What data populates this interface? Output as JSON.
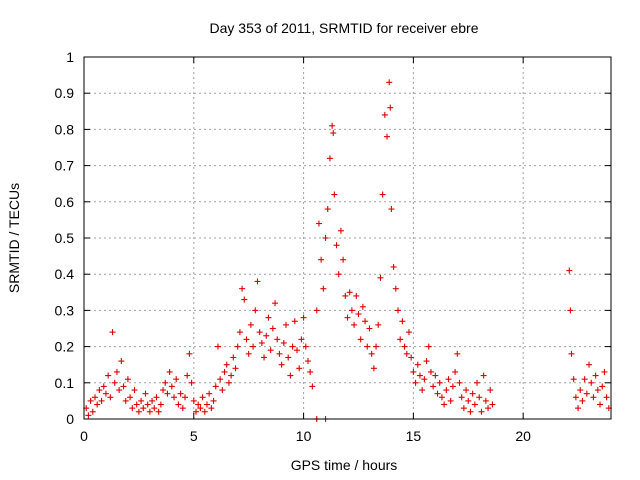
{
  "chart_data": {
    "type": "scatter",
    "title": "Day 353 of 2011, SRMTID for receiver ebre",
    "xlabel": "GPS time / hours",
    "ylabel": "SRMTID / TECUs",
    "xlim": [
      0,
      24
    ],
    "ylim": [
      0,
      1
    ],
    "xticks": [
      0,
      5,
      10,
      15,
      20
    ],
    "xtick_labels": [
      "0",
      "5",
      "10",
      "15",
      "20"
    ],
    "yticks": [
      0,
      0.1,
      0.2,
      0.3,
      0.4,
      0.5,
      0.6,
      0.7,
      0.8,
      0.9,
      1
    ],
    "ytick_labels": [
      "0",
      "0.1",
      "0.2",
      "0.3",
      "0.4",
      "0.5",
      "0.6",
      "0.7",
      "0.8",
      "0.9",
      "1"
    ],
    "grid": true,
    "marker": "+",
    "color": "#e00000",
    "series": [
      {
        "name": "SRMTID",
        "points": [
          [
            0.1,
            0.03
          ],
          [
            0.2,
            0.01
          ],
          [
            0.3,
            0.05
          ],
          [
            0.4,
            0.02
          ],
          [
            0.5,
            0.06
          ],
          [
            0.6,
            0.04
          ],
          [
            0.7,
            0.08
          ],
          [
            0.8,
            0.05
          ],
          [
            0.9,
            0.09
          ],
          [
            1.0,
            0.07
          ],
          [
            1.1,
            0.12
          ],
          [
            1.2,
            0.06
          ],
          [
            1.3,
            0.24
          ],
          [
            1.4,
            0.1
          ],
          [
            1.5,
            0.13
          ],
          [
            1.6,
            0.08
          ],
          [
            1.7,
            0.16
          ],
          [
            1.8,
            0.09
          ],
          [
            1.9,
            0.05
          ],
          [
            2.0,
            0.11
          ],
          [
            2.1,
            0.06
          ],
          [
            2.2,
            0.03
          ],
          [
            2.3,
            0.08
          ],
          [
            2.4,
            0.04
          ],
          [
            2.5,
            0.02
          ],
          [
            2.6,
            0.05
          ],
          [
            2.7,
            0.03
          ],
          [
            2.8,
            0.07
          ],
          [
            2.9,
            0.04
          ],
          [
            3.0,
            0.02
          ],
          [
            3.1,
            0.05
          ],
          [
            3.2,
            0.03
          ],
          [
            3.3,
            0.06
          ],
          [
            3.4,
            0.02
          ],
          [
            3.5,
            0.04
          ],
          [
            3.6,
            0.08
          ],
          [
            3.7,
            0.1
          ],
          [
            3.8,
            0.07
          ],
          [
            3.9,
            0.13
          ],
          [
            4.0,
            0.09
          ],
          [
            4.1,
            0.06
          ],
          [
            4.2,
            0.11
          ],
          [
            4.3,
            0.04
          ],
          [
            4.4,
            0.07
          ],
          [
            4.5,
            0.03
          ],
          [
            4.6,
            0.06
          ],
          [
            4.7,
            0.12
          ],
          [
            4.8,
            0.18
          ],
          [
            4.9,
            0.1
          ],
          [
            5.0,
            0.05
          ],
          [
            5.1,
            0.02
          ],
          [
            5.2,
            0.04
          ],
          [
            5.3,
            0.03
          ],
          [
            5.4,
            0.06
          ],
          [
            5.5,
            0.02
          ],
          [
            5.6,
            0.04
          ],
          [
            5.7,
            0.07
          ],
          [
            5.8,
            0.03
          ],
          [
            5.9,
            0.05
          ],
          [
            6.0,
            0.09
          ],
          [
            6.1,
            0.2
          ],
          [
            6.2,
            0.11
          ],
          [
            6.3,
            0.08
          ],
          [
            6.4,
            0.13
          ],
          [
            6.5,
            0.15
          ],
          [
            6.6,
            0.1
          ],
          [
            6.7,
            0.12
          ],
          [
            6.8,
            0.17
          ],
          [
            6.9,
            0.14
          ],
          [
            7.0,
            0.2
          ],
          [
            7.1,
            0.24
          ],
          [
            7.2,
            0.36
          ],
          [
            7.3,
            0.33
          ],
          [
            7.4,
            0.22
          ],
          [
            7.5,
            0.18
          ],
          [
            7.6,
            0.26
          ],
          [
            7.7,
            0.2
          ],
          [
            7.8,
            0.3
          ],
          [
            7.9,
            0.38
          ],
          [
            8.0,
            0.24
          ],
          [
            8.1,
            0.21
          ],
          [
            8.2,
            0.17
          ],
          [
            8.3,
            0.23
          ],
          [
            8.4,
            0.28
          ],
          [
            8.5,
            0.19
          ],
          [
            8.6,
            0.25
          ],
          [
            8.7,
            0.32
          ],
          [
            8.8,
            0.22
          ],
          [
            8.9,
            0.18
          ],
          [
            9.0,
            0.15
          ],
          [
            9.1,
            0.21
          ],
          [
            9.2,
            0.26
          ],
          [
            9.3,
            0.17
          ],
          [
            9.4,
            0.12
          ],
          [
            9.5,
            0.2
          ],
          [
            9.6,
            0.27
          ],
          [
            9.7,
            0.19
          ],
          [
            9.8,
            0.14
          ],
          [
            9.9,
            0.22
          ],
          [
            10.0,
            0.28
          ],
          [
            10.1,
            0.2
          ],
          [
            10.2,
            0.16
          ],
          [
            10.3,
            0.13
          ],
          [
            10.4,
            0.09
          ],
          [
            10.6,
            0.3
          ],
          [
            10.7,
            0.54
          ],
          [
            10.8,
            0.44
          ],
          [
            10.9,
            0.36
          ],
          [
            11.0,
            0.5
          ],
          [
            11.1,
            0.58
          ],
          [
            11.2,
            0.72
          ],
          [
            11.3,
            0.81
          ],
          [
            11.35,
            0.79
          ],
          [
            11.4,
            0.62
          ],
          [
            11.5,
            0.48
          ],
          [
            11.6,
            0.4
          ],
          [
            11.7,
            0.52
          ],
          [
            11.8,
            0.44
          ],
          [
            11.9,
            0.34
          ],
          [
            12.0,
            0.28
          ],
          [
            12.1,
            0.35
          ],
          [
            12.2,
            0.3
          ],
          [
            12.3,
            0.26
          ],
          [
            12.4,
            0.34
          ],
          [
            12.5,
            0.29
          ],
          [
            12.6,
            0.22
          ],
          [
            12.7,
            0.31
          ],
          [
            12.8,
            0.27
          ],
          [
            12.9,
            0.2
          ],
          [
            13.0,
            0.25
          ],
          [
            13.1,
            0.18
          ],
          [
            13.2,
            0.14
          ],
          [
            13.3,
            0.2
          ],
          [
            13.4,
            0.26
          ],
          [
            13.5,
            0.39
          ],
          [
            13.6,
            0.62
          ],
          [
            13.7,
            0.84
          ],
          [
            13.8,
            0.78
          ],
          [
            13.9,
            0.93
          ],
          [
            13.95,
            0.86
          ],
          [
            14.0,
            0.58
          ],
          [
            14.1,
            0.42
          ],
          [
            14.2,
            0.36
          ],
          [
            14.3,
            0.3
          ],
          [
            14.4,
            0.22
          ],
          [
            14.5,
            0.27
          ],
          [
            14.6,
            0.2
          ],
          [
            14.7,
            0.18
          ],
          [
            14.8,
            0.24
          ],
          [
            14.9,
            0.17
          ],
          [
            15.0,
            0.13
          ],
          [
            15.1,
            0.1
          ],
          [
            15.2,
            0.15
          ],
          [
            15.3,
            0.12
          ],
          [
            15.4,
            0.08
          ],
          [
            15.5,
            0.11
          ],
          [
            15.6,
            0.16
          ],
          [
            15.7,
            0.2
          ],
          [
            15.8,
            0.13
          ],
          [
            15.9,
            0.09
          ],
          [
            16.0,
            0.12
          ],
          [
            16.1,
            0.07
          ],
          [
            16.2,
            0.1
          ],
          [
            16.3,
            0.06
          ],
          [
            16.4,
            0.04
          ],
          [
            16.5,
            0.08
          ],
          [
            16.6,
            0.11
          ],
          [
            16.7,
            0.05
          ],
          [
            16.8,
            0.09
          ],
          [
            16.9,
            0.13
          ],
          [
            17.0,
            0.18
          ],
          [
            17.1,
            0.1
          ],
          [
            17.2,
            0.06
          ],
          [
            17.3,
            0.03
          ],
          [
            17.4,
            0.08
          ],
          [
            17.5,
            0.05
          ],
          [
            17.6,
            0.02
          ],
          [
            17.7,
            0.07
          ],
          [
            17.8,
            0.04
          ],
          [
            17.9,
            0.1
          ],
          [
            18.0,
            0.06
          ],
          [
            18.1,
            0.02
          ],
          [
            18.2,
            0.12
          ],
          [
            18.3,
            0.05
          ],
          [
            18.4,
            0.03
          ],
          [
            18.5,
            0.08
          ],
          [
            18.6,
            0.04
          ],
          [
            10.6,
            0.0
          ],
          [
            11.0,
            0.0
          ],
          [
            22.1,
            0.41
          ],
          [
            22.15,
            0.3
          ],
          [
            22.2,
            0.18
          ],
          [
            22.3,
            0.11
          ],
          [
            22.4,
            0.06
          ],
          [
            22.5,
            0.03
          ],
          [
            22.6,
            0.08
          ],
          [
            22.7,
            0.05
          ],
          [
            22.8,
            0.11
          ],
          [
            22.9,
            0.07
          ],
          [
            23.0,
            0.15
          ],
          [
            23.1,
            0.1
          ],
          [
            23.2,
            0.06
          ],
          [
            23.3,
            0.12
          ],
          [
            23.4,
            0.08
          ],
          [
            23.5,
            0.04
          ],
          [
            23.6,
            0.09
          ],
          [
            23.7,
            0.13
          ],
          [
            23.8,
            0.06
          ],
          [
            23.9,
            0.03
          ]
        ]
      }
    ]
  }
}
